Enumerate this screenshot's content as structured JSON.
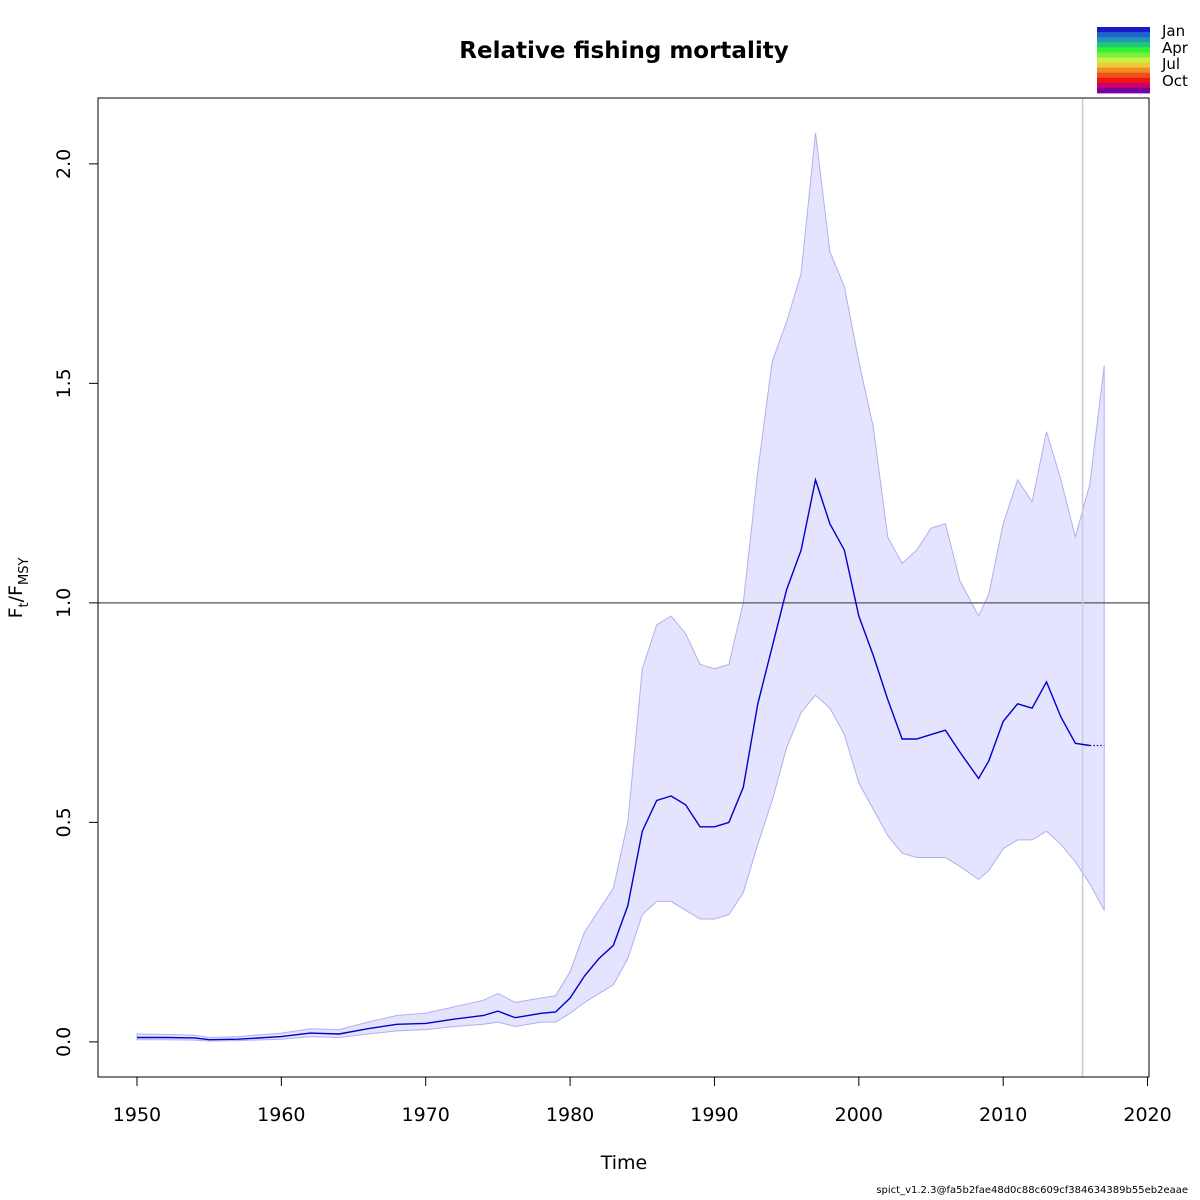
{
  "chart_data": {
    "type": "line",
    "title": "Relative fishing mortality",
    "xlabel": "Time",
    "ylabel_main": "F",
    "ylabel_sub1": "t",
    "ylabel_sep": "/F",
    "ylabel_sub2": "MSY",
    "xlim": [
      1947.3,
      2020.1
    ],
    "ylim": [
      -0.08,
      2.15
    ],
    "xticks": [
      1950,
      1960,
      1970,
      1980,
      1990,
      2000,
      2010,
      2020
    ],
    "yticks": [
      0.0,
      0.5,
      1.0,
      1.5,
      2.0
    ],
    "ytick_labels": [
      "0.0",
      "0.5",
      "1.0",
      "1.5",
      "2.0"
    ],
    "reference_line_y": 1.0,
    "vertical_line_x": 2015.5,
    "series": [
      {
        "role": "estimate",
        "color": "#0000cc",
        "x": [
          1950,
          1952,
          1954,
          1955,
          1957,
          1960,
          1962,
          1964,
          1966,
          1968,
          1970,
          1972,
          1974,
          1975,
          1976.2,
          1978,
          1979,
          1980,
          1981,
          1982,
          1983,
          1984,
          1985,
          1986,
          1987,
          1988,
          1989,
          1990,
          1991,
          1992,
          1993,
          1994,
          1995,
          1996,
          1997,
          1998,
          1999,
          2000,
          2001,
          2002,
          2003,
          2004,
          2005,
          2006,
          2007,
          2008.3,
          2009,
          2010,
          2011,
          2012,
          2013,
          2014,
          2015,
          2016
        ],
        "y": [
          0.01,
          0.01,
          0.009,
          0.005,
          0.006,
          0.012,
          0.02,
          0.018,
          0.03,
          0.04,
          0.042,
          0.052,
          0.06,
          0.07,
          0.055,
          0.065,
          0.068,
          0.1,
          0.15,
          0.19,
          0.22,
          0.31,
          0.48,
          0.55,
          0.56,
          0.54,
          0.49,
          0.49,
          0.5,
          0.58,
          0.77,
          0.9,
          1.03,
          1.12,
          1.28,
          1.18,
          1.12,
          0.97,
          0.88,
          0.78,
          0.69,
          0.69,
          0.7,
          0.71,
          0.66,
          0.6,
          0.64,
          0.73,
          0.77,
          0.76,
          0.82,
          0.74,
          0.68,
          0.675
        ]
      },
      {
        "role": "upper-ci",
        "x": [
          1950,
          1952,
          1954,
          1955,
          1957,
          1960,
          1962,
          1964,
          1966,
          1968,
          1970,
          1972,
          1974,
          1975,
          1976.2,
          1978,
          1979,
          1980,
          1981,
          1982,
          1983,
          1984,
          1985,
          1986,
          1987,
          1988,
          1989,
          1990,
          1991,
          1992,
          1993,
          1994,
          1995,
          1996,
          1997,
          1998,
          1999,
          2000,
          2001,
          2002,
          2003,
          2004,
          2005,
          2006,
          2007,
          2008.3,
          2009,
          2010,
          2011,
          2012,
          2013,
          2014,
          2015,
          2016,
          2017
        ],
        "y": [
          0.018,
          0.017,
          0.015,
          0.01,
          0.012,
          0.02,
          0.03,
          0.028,
          0.045,
          0.06,
          0.065,
          0.08,
          0.095,
          0.11,
          0.09,
          0.1,
          0.105,
          0.16,
          0.25,
          0.3,
          0.35,
          0.5,
          0.85,
          0.95,
          0.97,
          0.93,
          0.86,
          0.85,
          0.86,
          1.0,
          1.3,
          1.55,
          1.64,
          1.75,
          2.07,
          1.8,
          1.72,
          1.55,
          1.4,
          1.15,
          1.09,
          1.12,
          1.17,
          1.18,
          1.05,
          0.97,
          1.02,
          1.18,
          1.28,
          1.23,
          1.39,
          1.28,
          1.15,
          1.27,
          1.54
        ]
      },
      {
        "role": "lower-ci",
        "x": [
          1950,
          1952,
          1954,
          1955,
          1957,
          1960,
          1962,
          1964,
          1966,
          1968,
          1970,
          1972,
          1974,
          1975,
          1976.2,
          1978,
          1979,
          1980,
          1981,
          1982,
          1983,
          1984,
          1985,
          1986,
          1987,
          1988,
          1989,
          1990,
          1991,
          1992,
          1993,
          1994,
          1995,
          1996,
          1997,
          1998,
          1999,
          2000,
          2001,
          2002,
          2003,
          2004,
          2005,
          2006,
          2007,
          2008.3,
          2009,
          2010,
          2011,
          2012,
          2013,
          2014,
          2015,
          2016,
          2017
        ],
        "y": [
          0.005,
          0.005,
          0.004,
          0.002,
          0.003,
          0.006,
          0.012,
          0.01,
          0.018,
          0.025,
          0.028,
          0.035,
          0.04,
          0.045,
          0.035,
          0.045,
          0.045,
          0.065,
          0.09,
          0.11,
          0.13,
          0.19,
          0.29,
          0.32,
          0.32,
          0.3,
          0.28,
          0.28,
          0.29,
          0.34,
          0.45,
          0.55,
          0.67,
          0.75,
          0.79,
          0.76,
          0.7,
          0.59,
          0.53,
          0.47,
          0.43,
          0.42,
          0.42,
          0.42,
          0.4,
          0.37,
          0.39,
          0.44,
          0.46,
          0.46,
          0.48,
          0.45,
          0.41,
          0.36,
          0.3
        ]
      },
      {
        "role": "forecast",
        "style": "dotted",
        "color": "#0000cc",
        "x": [
          2016,
          2017
        ],
        "y": [
          0.675,
          0.675
        ]
      }
    ],
    "legend": {
      "placement": "top-right",
      "type": "color-gradient",
      "labels": [
        "Jan",
        "Apr",
        "Jul",
        "Oct"
      ],
      "colors": [
        "#1a1acc",
        "#1e64c8",
        "#1e96b4",
        "#1ec878",
        "#32f032",
        "#78f03c",
        "#c8f03c",
        "#f0c83c",
        "#f08c28",
        "#f05014",
        "#f01414",
        "#c8006e",
        "#7800a0"
      ]
    },
    "colors": {
      "band_fill": "#e4e4ff",
      "band_edge": "#b0b0ee",
      "reference_line": "#555555",
      "vertical_line": "#c8ccd8"
    }
  },
  "footer": {
    "text": "spict_v1.2.3@fa5b2fae48d0c88c609cf384634389b55eb2eaae"
  }
}
